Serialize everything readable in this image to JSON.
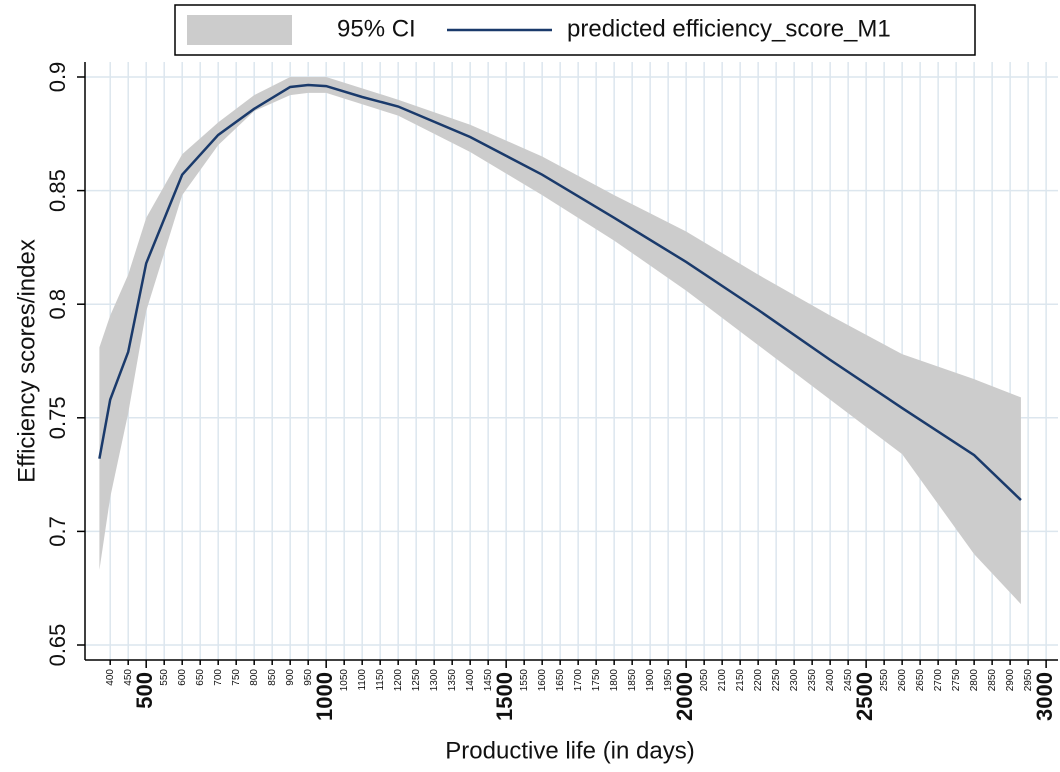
{
  "chart_data": {
    "type": "line",
    "xlabel": "Productive life (in days)",
    "ylabel": "Efficiency scores/index",
    "x": [
      370,
      400,
      450,
      500,
      600,
      700,
      800,
      900,
      950,
      1000,
      1100,
      1200,
      1400,
      1600,
      1800,
      2000,
      2200,
      2400,
      2600,
      2800,
      2930
    ],
    "series": [
      {
        "name": "95% CI",
        "kind": "band",
        "color": "#cccccc",
        "lower": [
          0.683,
          0.715,
          0.752,
          0.797,
          0.848,
          0.87,
          0.885,
          0.892,
          0.893,
          0.893,
          0.888,
          0.883,
          0.867,
          0.848,
          0.828,
          0.806,
          0.782,
          0.758,
          0.734,
          0.69,
          0.668
        ],
        "upper": [
          0.781,
          0.795,
          0.813,
          0.838,
          0.866,
          0.88,
          0.892,
          0.9,
          0.9,
          0.9,
          0.895,
          0.89,
          0.879,
          0.865,
          0.848,
          0.832,
          0.813,
          0.795,
          0.778,
          0.767,
          0.759
        ]
      },
      {
        "name": "predicted efficiency_score_M1",
        "kind": "line",
        "color": "#1a3a6b",
        "values": [
          0.732,
          0.758,
          0.779,
          0.818,
          0.857,
          0.8745,
          0.886,
          0.8956,
          0.8965,
          0.896,
          0.8912,
          0.887,
          0.8736,
          0.857,
          0.838,
          0.8186,
          0.7975,
          0.7755,
          0.7543,
          0.7336,
          0.7138
        ]
      }
    ],
    "xlim": [
      330,
      3033
    ],
    "ylim": [
      0.6434,
      0.9066
    ],
    "xticks": [
      500,
      1000,
      1500,
      2000,
      2500,
      3000
    ],
    "xticks_minor": [
      400,
      450,
      550,
      600,
      650,
      700,
      750,
      800,
      850,
      900,
      950,
      1050,
      1100,
      1150,
      1200,
      1250,
      1300,
      1350,
      1400,
      1450,
      1550,
      1600,
      1650,
      1700,
      1750,
      1800,
      1850,
      1900,
      1950,
      2050,
      2100,
      2150,
      2200,
      2250,
      2300,
      2350,
      2400,
      2450,
      2550,
      2600,
      2650,
      2700,
      2750,
      2800,
      2850,
      2900,
      2950
    ],
    "yticks": [
      0.65,
      0.7,
      0.75,
      0.8,
      0.85,
      0.9
    ],
    "grid": true,
    "legend": "top"
  }
}
